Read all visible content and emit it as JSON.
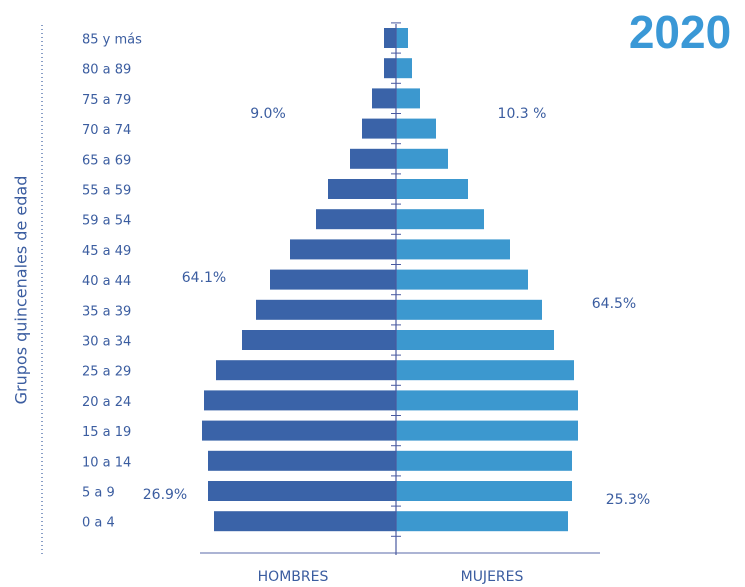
{
  "chart_data": {
    "type": "pyramid",
    "title": "2020",
    "y_label": "Grupos quincenales de edad",
    "categories": [
      "85 y más",
      "80 a 89",
      "75 a 79",
      "70 a 74",
      "65 a 69",
      "55 a 59",
      "59 a 54",
      "45 a 49",
      "40 a 44",
      "35 a 39",
      "30 a 34",
      "25 a 29",
      "20 a 24",
      "15 a 19",
      "10 a 14",
      "5 a 9",
      "0 a 4"
    ],
    "series": [
      {
        "name": "HOMBRES",
        "color": "#3a63a8",
        "values": [
          0.6,
          0.6,
          1.2,
          1.7,
          2.3,
          3.4,
          4.0,
          5.3,
          6.3,
          7.0,
          7.7,
          9.0,
          9.6,
          9.7,
          9.4,
          9.4,
          9.1
        ]
      },
      {
        "name": "MUJERES",
        "color": "#3c98cf",
        "values": [
          0.6,
          0.8,
          1.2,
          2.0,
          2.6,
          3.6,
          4.4,
          5.7,
          6.6,
          7.3,
          7.9,
          8.9,
          9.1,
          9.1,
          8.8,
          8.8,
          8.6
        ]
      }
    ],
    "annotations": [
      "9.0%",
      "10.3 %",
      "64.1%",
      "64.5%",
      "26.9%",
      "25.3%"
    ]
  }
}
